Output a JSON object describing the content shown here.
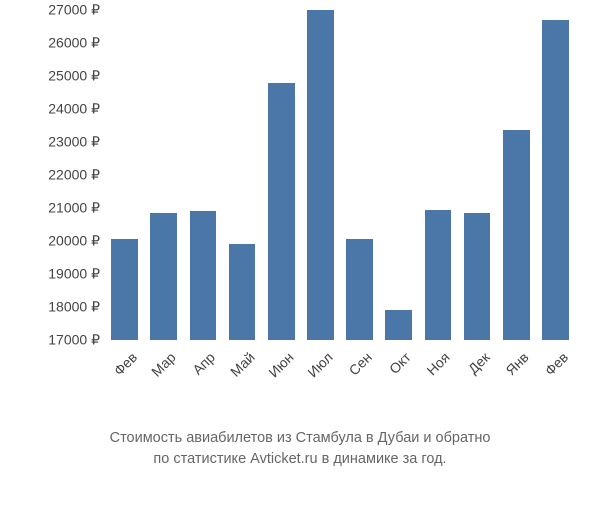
{
  "chart": {
    "type": "bar",
    "categories": [
      "Фев",
      "Мар",
      "Апр",
      "Май",
      "Июн",
      "Июл",
      "Сен",
      "Окт",
      "Ноя",
      "Дек",
      "Янв",
      "Фев"
    ],
    "values": [
      20050,
      20850,
      20900,
      19900,
      24800,
      27000,
      20050,
      17900,
      20950,
      20850,
      23350,
      26700
    ],
    "bar_color": "#4a77a8",
    "background_color": "#ffffff",
    "ylim": [
      17000,
      27000
    ],
    "ytick_step": 1000,
    "y_unit": "₽",
    "y_ticks": [
      "17000 ₽",
      "18000 ₽",
      "19000 ₽",
      "20000 ₽",
      "21000 ₽",
      "22000 ₽",
      "23000 ₽",
      "24000 ₽",
      "25000 ₽",
      "26000 ₽",
      "27000 ₽"
    ],
    "bar_width_ratio": 0.68,
    "tick_fontsize": 14,
    "tick_color": "#444444",
    "x_label_rotation": -45
  },
  "caption": {
    "line1": "Стоимость авиабилетов из Стамбула в Дубаи и обратно",
    "line2": "по статистике Avticket.ru в динамике за год.",
    "fontsize": 14.5,
    "color": "#666666"
  }
}
